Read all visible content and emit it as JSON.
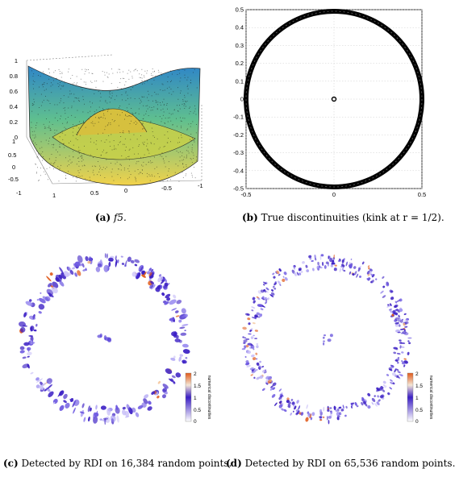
{
  "captions": {
    "a": {
      "tag": "(a)",
      "text": "f5."
    },
    "b": {
      "tag": "(b)",
      "text": "True discontinuities (kink at r = 1/2)."
    },
    "c": {
      "tag": "(c)",
      "text": "Detected by RDI on 16,384 random points."
    },
    "d": {
      "tag": "(d)",
      "text": "Detected by RDI on 65,536 random points."
    }
  },
  "colors": {
    "surface_top": "#2f86c8",
    "surface_mid": "#5fbf8f",
    "surface_low": "#f2d24a",
    "marker": "#000000",
    "cmap_low": "#ffffff",
    "cmap_mid": "#3b1fc4",
    "cmap_high": "#e05a1a"
  },
  "chart_data": [
    {
      "type": "surface",
      "id": "a",
      "title": "",
      "xticks": [
        "1",
        "0.5",
        "0",
        "-0.5",
        "-1"
      ],
      "yticks": [
        "-1",
        "-0.5",
        "0",
        "0.5",
        "1"
      ],
      "zticks": [
        "1",
        "0.8",
        "0.6",
        "0.4",
        "0.2",
        "0"
      ],
      "zlim": [
        0,
        1
      ],
      "grid": true
    },
    {
      "type": "scatter",
      "id": "b",
      "title": "",
      "xlim": [
        -0.5,
        0.5
      ],
      "ylim": [
        -0.5,
        0.5
      ],
      "xticks": [
        "-0.5",
        "0",
        "0.5"
      ],
      "yticks": [
        "0.5",
        "0.4",
        "0.3",
        "0.2",
        "0.1",
        "0",
        "-0.1",
        "-0.2",
        "-0.3",
        "-0.4",
        "-0.5"
      ],
      "series": [
        {
          "shape": "circle",
          "radius": 0.5,
          "marker": "o"
        },
        {
          "shape": "point",
          "x": 0,
          "y": 0,
          "marker": "o"
        }
      ],
      "grid": true
    },
    {
      "type": "heatmap",
      "id": "c",
      "title": "",
      "points": 16384,
      "ring_radius": 0.5,
      "colorbar": {
        "label": "numerical discontinuities",
        "ticks": [
          "2",
          "1.5",
          "1",
          "0.5",
          "0"
        ],
        "range": [
          0,
          2
        ]
      }
    },
    {
      "type": "heatmap",
      "id": "d",
      "title": "",
      "points": 65536,
      "ring_radius": 0.5,
      "colorbar": {
        "label": "numerical discontinuities",
        "ticks": [
          "2",
          "1.5",
          "1",
          "0.5",
          "0"
        ],
        "range": [
          0,
          2
        ]
      }
    }
  ]
}
